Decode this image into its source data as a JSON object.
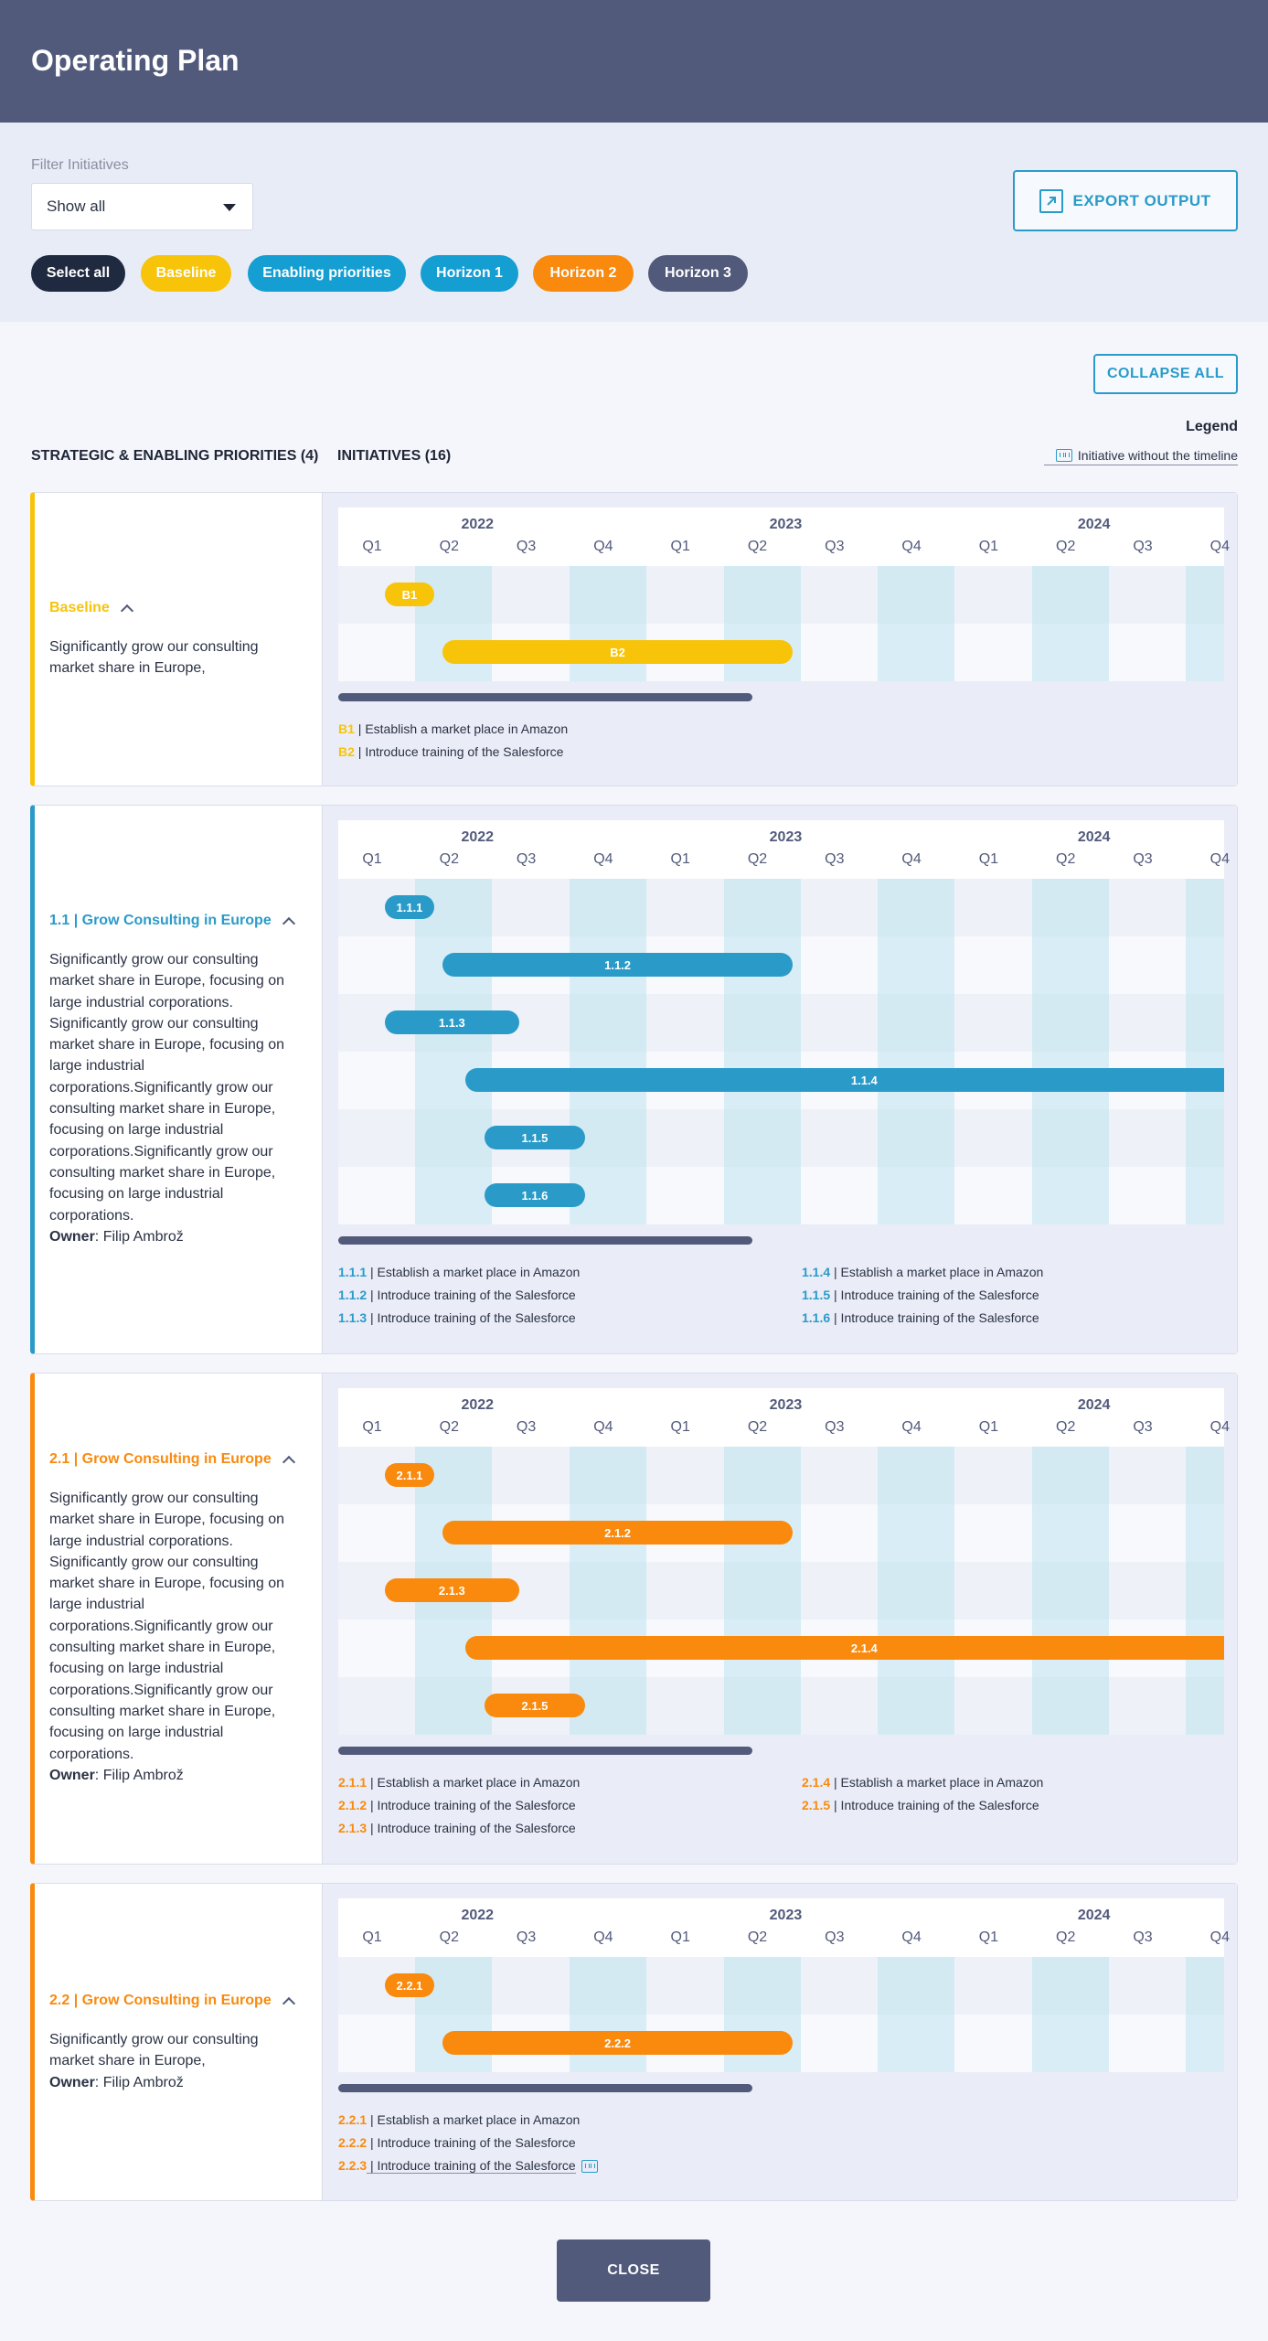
{
  "header": {
    "title": "Operating Plan"
  },
  "filters": {
    "label": "Filter Initiatives",
    "select_value": "Show all",
    "export_label": "EXPORT OUTPUT",
    "chips": [
      {
        "label": "Select all",
        "color": "#1f2a40"
      },
      {
        "label": "Baseline",
        "color": "#f7c40a"
      },
      {
        "label": "Enabling priorities",
        "color": "#149ed2"
      },
      {
        "label": "Horizon 1",
        "color": "#149ed2"
      },
      {
        "label": "Horizon 2",
        "color": "#f98a0e"
      },
      {
        "label": "Horizon 3",
        "color": "#525a7b"
      }
    ]
  },
  "toolbar": {
    "collapse_label": "COLLAPSE ALL"
  },
  "legend": {
    "title": "Legend",
    "item": "Initiative without the timeline"
  },
  "columns": {
    "priorities": "STRATEGIC & ENABLING PRIORITIES (4)",
    "initiatives": "INITIATIVES (16)"
  },
  "timeline": {
    "years": [
      "2022",
      "2023",
      "2024"
    ],
    "quarters": [
      "Q1",
      "Q2",
      "Q3",
      "Q4",
      "Q1",
      "Q2",
      "Q3",
      "Q4",
      "Q1",
      "Q2",
      "Q3",
      "Q4"
    ]
  },
  "sections": [
    {
      "color": "#f7c40a",
      "code": "",
      "title": "Baseline",
      "desc": "Significantly grow our consulting market share in Europe,",
      "owner_label": "",
      "owner": "",
      "initiatives": [
        {
          "code": "B1",
          "start": 0.6,
          "end": 1.25
        },
        {
          "code": "B2",
          "start": 1.35,
          "end": 5.9
        }
      ],
      "notes": [
        {
          "code": "B1",
          "text": "Establish a market place in Amazon",
          "col": 0
        },
        {
          "code": "B2",
          "text": "Introduce training of the Salesforce",
          "col": 0
        }
      ]
    },
    {
      "color": "#2a9bc9",
      "code": "1.1",
      "title": "Grow Consulting in Europe",
      "desc": "Significantly grow our consulting market share in Europe, focusing on large industrial corporations. Significantly grow our consulting market share in Europe, focusing on large industrial corporations.Significantly grow our consulting market share in Europe, focusing on large industrial corporations.Significantly grow our consulting market share in Europe, focusing on large industrial corporations.",
      "owner_label": "Owner",
      "owner": "Filip Ambrož",
      "initiatives": [
        {
          "code": "1.1.1",
          "start": 0.6,
          "end": 1.25
        },
        {
          "code": "1.1.2",
          "start": 1.35,
          "end": 5.9
        },
        {
          "code": "1.1.3",
          "start": 0.6,
          "end": 2.35
        },
        {
          "code": "1.1.4",
          "start": 1.65,
          "end": 12.0
        },
        {
          "code": "1.1.5",
          "start": 1.9,
          "end": 3.2
        },
        {
          "code": "1.1.6",
          "start": 1.9,
          "end": 3.2
        }
      ],
      "notes": [
        {
          "code": "1.1.1",
          "text": "Establish a market place in Amazon",
          "col": 0
        },
        {
          "code": "1.1.2",
          "text": "Introduce training of the Salesforce",
          "col": 0
        },
        {
          "code": "1.1.3",
          "text": "Introduce training of the Salesforce",
          "col": 0
        },
        {
          "code": "1.1.4",
          "text": "Establish a market place in Amazon",
          "col": 1
        },
        {
          "code": "1.1.5",
          "text": "Introduce training of the Salesforce",
          "col": 1
        },
        {
          "code": "1.1.6",
          "text": "Introduce training of the Salesforce",
          "col": 1
        }
      ]
    },
    {
      "color": "#f98a0e",
      "code": "2.1",
      "title": "Grow Consulting in Europe",
      "desc": "Significantly grow our consulting market share in Europe, focusing on large industrial corporations. Significantly grow our consulting market share in Europe, focusing on large industrial corporations.Significantly grow our consulting market share in Europe, focusing on large industrial corporations.Significantly grow our consulting market share in Europe, focusing on large industrial corporations.",
      "owner_label": "Owner",
      "owner": "Filip Ambrož",
      "initiatives": [
        {
          "code": "2.1.1",
          "start": 0.6,
          "end": 1.25
        },
        {
          "code": "2.1.2",
          "start": 1.35,
          "end": 5.9
        },
        {
          "code": "2.1.3",
          "start": 0.6,
          "end": 2.35
        },
        {
          "code": "2.1.4",
          "start": 1.65,
          "end": 12.0
        },
        {
          "code": "2.1.5",
          "start": 1.9,
          "end": 3.2
        }
      ],
      "notes": [
        {
          "code": "2.1.1",
          "text": "Establish a market place in Amazon",
          "col": 0
        },
        {
          "code": "2.1.2",
          "text": "Introduce training of the Salesforce",
          "col": 0
        },
        {
          "code": "2.1.3",
          "text": "Introduce training of the Salesforce",
          "col": 0
        },
        {
          "code": "2.1.4",
          "text": "Establish a market place in Amazon",
          "col": 1
        },
        {
          "code": "2.1.5",
          "text": "Introduce training of the Salesforce",
          "col": 1
        }
      ]
    },
    {
      "color": "#f98a0e",
      "code": "2.2",
      "title": "Grow Consulting in Europe",
      "desc": "Significantly grow our consulting market share in Europe,",
      "owner_label": "Owner",
      "owner": "Filip Ambrož",
      "initiatives": [
        {
          "code": "2.2.1",
          "start": 0.6,
          "end": 1.25
        },
        {
          "code": "2.2.2",
          "start": 1.35,
          "end": 5.9
        }
      ],
      "notes": [
        {
          "code": "2.2.1",
          "text": "Establish a market place in Amazon",
          "col": 0
        },
        {
          "code": "2.2.2",
          "text": "Introduce training of the Salesforce",
          "col": 0
        },
        {
          "code": "2.2.3",
          "text": "Introduce training of the Salesforce",
          "col": 0,
          "no_timeline": true
        }
      ]
    }
  ],
  "footer": {
    "close_label": "CLOSE"
  }
}
